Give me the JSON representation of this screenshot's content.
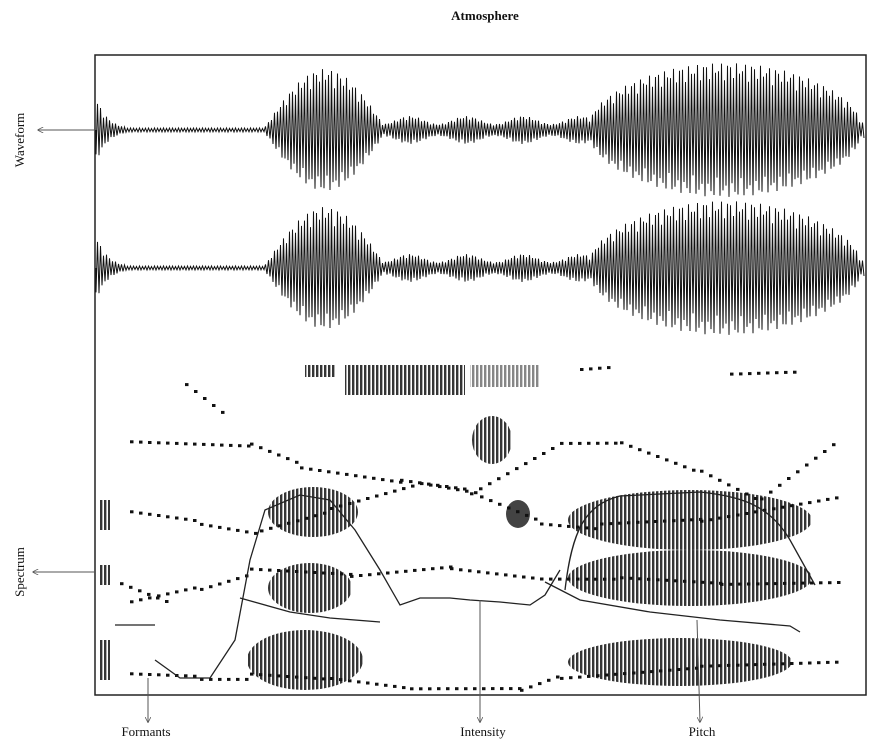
{
  "title": "Atmosphere",
  "side_labels": {
    "waveform": "Waveform",
    "spectrum": "Spectrum"
  },
  "bottom_labels": {
    "formants": "Formants",
    "intensity": "Intensity",
    "pitch": "Pitch"
  }
}
